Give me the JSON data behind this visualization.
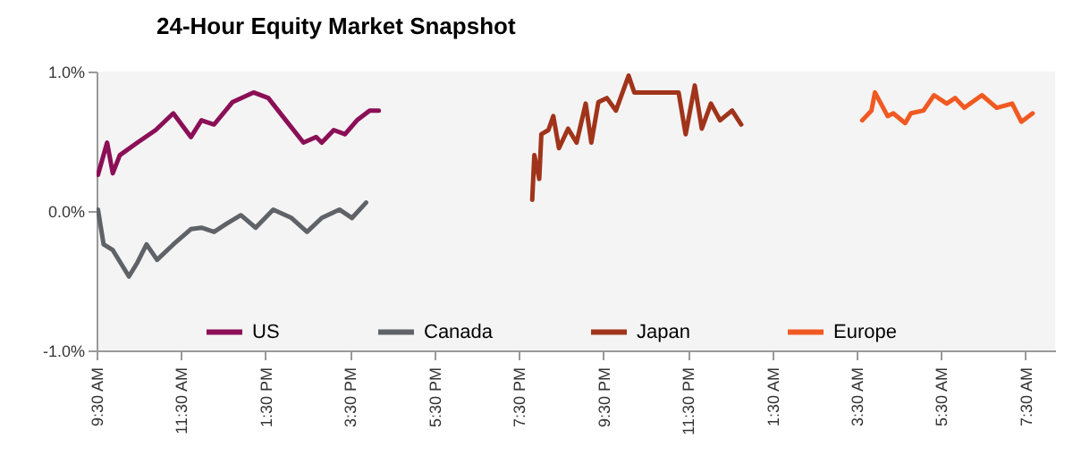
{
  "chart_data": {
    "type": "line",
    "title": "24-Hour Equity Market Snapshot",
    "xlim": [
      "--01-01T09:30",
      "--01-02T08:12"
    ],
    "ylim": [
      -1,
      1
    ],
    "xticks": [
      {
        "value": "--01-01T09:30",
        "label": "9:30 AM"
      },
      {
        "value": "--01-01T11:30",
        "label": "11:30 AM"
      },
      {
        "value": "--01-01T13:30",
        "label": "1:30 PM"
      },
      {
        "value": "--01-01T15:30",
        "label": "3:30 PM"
      },
      {
        "value": "--01-01T17:30",
        "label": "5:30 PM"
      },
      {
        "value": "--01-01T19:30",
        "label": "7:30 PM"
      },
      {
        "value": "--01-01T21:30",
        "label": "9:30 PM"
      },
      {
        "value": "--01-01T23:30",
        "label": "11:30 PM"
      },
      {
        "value": "--01-02T01:30",
        "label": "1:30 AM"
      },
      {
        "value": "--01-02T03:30",
        "label": "3:30 AM"
      },
      {
        "value": "--01-02T05:30",
        "label": "5:30 AM"
      },
      {
        "value": "--01-02T07:30",
        "label": "7:30 AM"
      }
    ],
    "yticks": [
      {
        "value": -1,
        "label": "-1.0%"
      },
      {
        "value": 0,
        "label": "0.0%"
      },
      {
        "value": 1,
        "label": "1.0%"
      }
    ],
    "grid": false,
    "legend": "bottom",
    "marker": "none",
    "line_style": "solid",
    "series": [
      {
        "name": "US",
        "color": "#8b0f56",
        "x": [
          "--01-01T09:32",
          "--01-01T09:45",
          "--01-01T09:53",
          "--01-01T10:03",
          "--01-01T10:28",
          "--01-01T10:54",
          "--01-01T11:19",
          "--01-01T11:44",
          "--01-01T11:59",
          "--01-01T12:17",
          "--01-01T12:43",
          "--01-01T13:13",
          "--01-01T13:34",
          "--01-01T13:59",
          "--01-01T14:24",
          "--01-01T14:42",
          "--01-01T14:50",
          "--01-01T15:07",
          "--01-01T15:23",
          "--01-01T15:40",
          "--01-01T15:58",
          "--01-01T16:11"
        ],
        "values": [
          0.26,
          0.49,
          0.27,
          0.4,
          0.49,
          0.58,
          0.7,
          0.53,
          0.65,
          0.62,
          0.78,
          0.85,
          0.81,
          0.65,
          0.49,
          0.53,
          0.49,
          0.58,
          0.55,
          0.65,
          0.72,
          0.72
        ]
      },
      {
        "name": "Canada",
        "color": "#5f6368",
        "x": [
          "--01-01T09:32",
          "--01-01T09:40",
          "--01-01T09:53",
          "--01-01T10:16",
          "--01-01T10:28",
          "--01-01T10:41",
          "--01-01T10:56",
          "--01-01T11:19",
          "--01-01T11:44",
          "--01-01T11:59",
          "--01-01T12:17",
          "--01-01T12:35",
          "--01-01T12:55",
          "--01-01T13:16",
          "--01-01T13:41",
          "--01-01T14:07",
          "--01-01T14:29",
          "--01-01T14:50",
          "--01-01T15:15",
          "--01-01T15:33",
          "--01-01T15:53"
        ],
        "values": [
          0.01,
          -0.24,
          -0.28,
          -0.47,
          -0.37,
          -0.24,
          -0.35,
          -0.24,
          -0.13,
          -0.12,
          -0.15,
          -0.09,
          -0.03,
          -0.12,
          0.01,
          -0.05,
          -0.15,
          -0.05,
          0.01,
          -0.05,
          0.06
        ]
      },
      {
        "name": "Japan",
        "color": "#a0341b",
        "x": [
          "--01-01T19:49",
          "--01-01T19:52",
          "--01-01T19:59",
          "--01-01T20:02",
          "--01-01T20:12",
          "--01-01T20:19",
          "--01-01T20:27",
          "--01-01T20:40",
          "--01-01T20:52",
          "--01-01T21:05",
          "--01-01T21:13",
          "--01-01T21:23",
          "--01-01T21:35",
          "--01-01T21:48",
          "--01-01T22:06",
          "--01-01T22:14",
          "--01-01T23:17",
          "--01-01T23:27",
          "--01-01T23:40",
          "--01-01T23:50",
          "--01-02T00:03",
          "--01-02T00:16",
          "--01-02T00:33",
          "--01-02T00:46"
        ],
        "values": [
          0.08,
          0.4,
          0.23,
          0.55,
          0.58,
          0.68,
          0.45,
          0.59,
          0.49,
          0.77,
          0.49,
          0.78,
          0.81,
          0.72,
          0.97,
          0.85,
          0.85,
          0.55,
          0.9,
          0.59,
          0.77,
          0.65,
          0.72,
          0.62
        ]
      },
      {
        "name": "Europe",
        "color": "#f05a22",
        "x": [
          "--01-02T03:38",
          "--01-02T03:51",
          "--01-02T03:56",
          "--01-02T04:14",
          "--01-02T04:22",
          "--01-02T04:39",
          "--01-02T04:47",
          "--01-02T05:05",
          "--01-02T05:20",
          "--01-02T05:38",
          "--01-02T05:50",
          "--01-02T06:03",
          "--01-02T06:28",
          "--01-02T06:49",
          "--01-02T07:11",
          "--01-02T07:24",
          "--01-02T07:40"
        ],
        "values": [
          0.65,
          0.72,
          0.85,
          0.68,
          0.7,
          0.63,
          0.7,
          0.72,
          0.83,
          0.77,
          0.81,
          0.74,
          0.83,
          0.74,
          0.77,
          0.64,
          0.7
        ]
      }
    ]
  }
}
